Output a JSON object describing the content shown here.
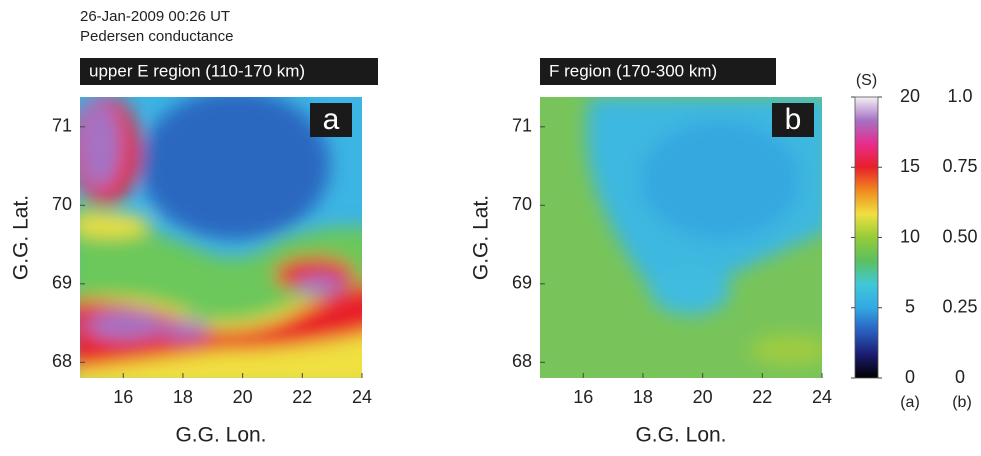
{
  "header": {
    "time": "26-Jan-2009 00:26 UT",
    "quantity": "Pedersen conductance"
  },
  "chart_data": [
    {
      "type": "heatmap",
      "title": "upper E region (110-170 km)",
      "panel_label": "a",
      "xlabel": "G.G. Lon.",
      "ylabel": "G.G. Lat.",
      "xlim": [
        14.55,
        24
      ],
      "ylim": [
        67.8,
        71.38
      ],
      "xticks": [
        16,
        18,
        20,
        22,
        24
      ],
      "yticks": [
        68,
        69,
        70,
        71
      ]
    },
    {
      "type": "heatmap",
      "title": "F region (170-300 km)",
      "panel_label": "b",
      "xlabel": "G.G. Lon.",
      "ylabel": "G.G. Lat.",
      "xlim": [
        14.55,
        24
      ],
      "ylim": [
        67.8,
        71.38
      ],
      "xticks": [
        16,
        18,
        20,
        22,
        24
      ],
      "yticks": [
        68,
        69,
        70,
        71
      ]
    },
    {
      "type": "colorbar",
      "unit": "(S)",
      "ylabel": "(a)",
      "y2label": "(b)",
      "ylim": [
        0,
        20
      ],
      "yticks": [
        0,
        5,
        10,
        15,
        20
      ],
      "y2lim": [
        0,
        1
      ],
      "y2ticks": [
        0,
        0.25,
        {
          "value": 0.5,
          "label": "0.50"
        },
        0.75,
        {
          "value": 1,
          "label": "1.0"
        }
      ],
      "colormap": [
        "#000000",
        "#1b1c70",
        "#2a5fc0",
        "#33a8e4",
        "#40c8d8",
        "#5cc060",
        "#94cc38",
        "#f0e040",
        "#f08a20",
        "#e8202a",
        "#e82c8c",
        "#a472c4",
        "#f6f0f6"
      ]
    }
  ]
}
